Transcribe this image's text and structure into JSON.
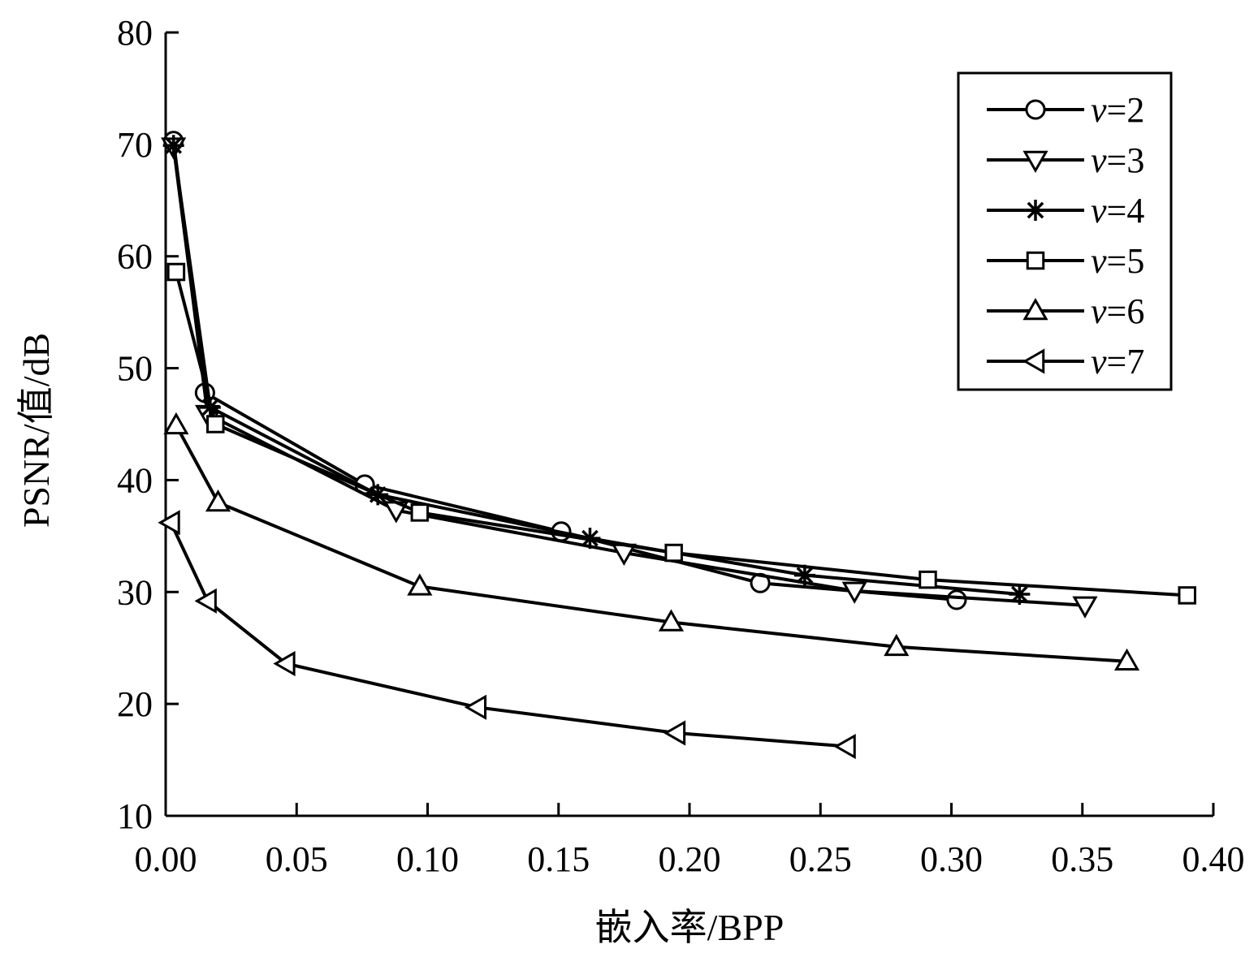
{
  "chart_data": {
    "type": "line",
    "xlabel": "嵌入率/BPP",
    "ylabel": "PSNR/值/dB",
    "xlim": [
      0.0,
      0.4
    ],
    "ylim": [
      10,
      80
    ],
    "x_ticks": [
      "0.00",
      "0.05",
      "0.10",
      "0.15",
      "0.20",
      "0.25",
      "0.30",
      "0.35",
      "0.40"
    ],
    "y_ticks": [
      "10",
      "20",
      "30",
      "40",
      "50",
      "60",
      "70",
      "80"
    ],
    "legend_position": "top-right",
    "grid": false,
    "series": [
      {
        "name": "v=2",
        "name_var": "v",
        "name_eq": "=2",
        "marker": "circle",
        "points": [
          [
            0.003,
            70.3
          ],
          [
            0.015,
            47.8
          ],
          [
            0.076,
            39.6
          ],
          [
            0.151,
            35.4
          ],
          [
            0.227,
            30.8
          ],
          [
            0.302,
            29.3
          ]
        ]
      },
      {
        "name": "v=3",
        "name_var": "v",
        "name_eq": "=3",
        "marker": "triangle-down",
        "points": [
          [
            0.003,
            69.8
          ],
          [
            0.016,
            45.9
          ],
          [
            0.088,
            37.3
          ],
          [
            0.175,
            33.5
          ],
          [
            0.263,
            30.1
          ],
          [
            0.351,
            28.8
          ]
        ]
      },
      {
        "name": "v=4",
        "name_var": "v",
        "name_eq": "=4",
        "marker": "star",
        "points": [
          [
            0.003,
            69.9
          ],
          [
            0.017,
            46.5
          ],
          [
            0.081,
            38.7
          ],
          [
            0.162,
            34.8
          ],
          [
            0.244,
            31.5
          ],
          [
            0.326,
            29.8
          ]
        ]
      },
      {
        "name": "v=5",
        "name_var": "v",
        "name_eq": "=5",
        "marker": "square",
        "points": [
          [
            0.004,
            58.6
          ],
          [
            0.019,
            45.0
          ],
          [
            0.097,
            37.1
          ],
          [
            0.194,
            33.5
          ],
          [
            0.291,
            31.1
          ],
          [
            0.39,
            29.7
          ]
        ]
      },
      {
        "name": "v=6",
        "name_var": "v",
        "name_eq": "=6",
        "marker": "triangle-up",
        "points": [
          [
            0.004,
            44.9
          ],
          [
            0.02,
            38.0
          ],
          [
            0.097,
            30.5
          ],
          [
            0.193,
            27.3
          ],
          [
            0.279,
            25.1
          ],
          [
            0.367,
            23.8
          ]
        ]
      },
      {
        "name": "v=7",
        "name_var": "v",
        "name_eq": "=7",
        "marker": "triangle-left",
        "points": [
          [
            0.002,
            36.2
          ],
          [
            0.016,
            29.2
          ],
          [
            0.046,
            23.6
          ],
          [
            0.119,
            19.7
          ],
          [
            0.195,
            17.4
          ],
          [
            0.26,
            16.2
          ]
        ]
      }
    ]
  }
}
